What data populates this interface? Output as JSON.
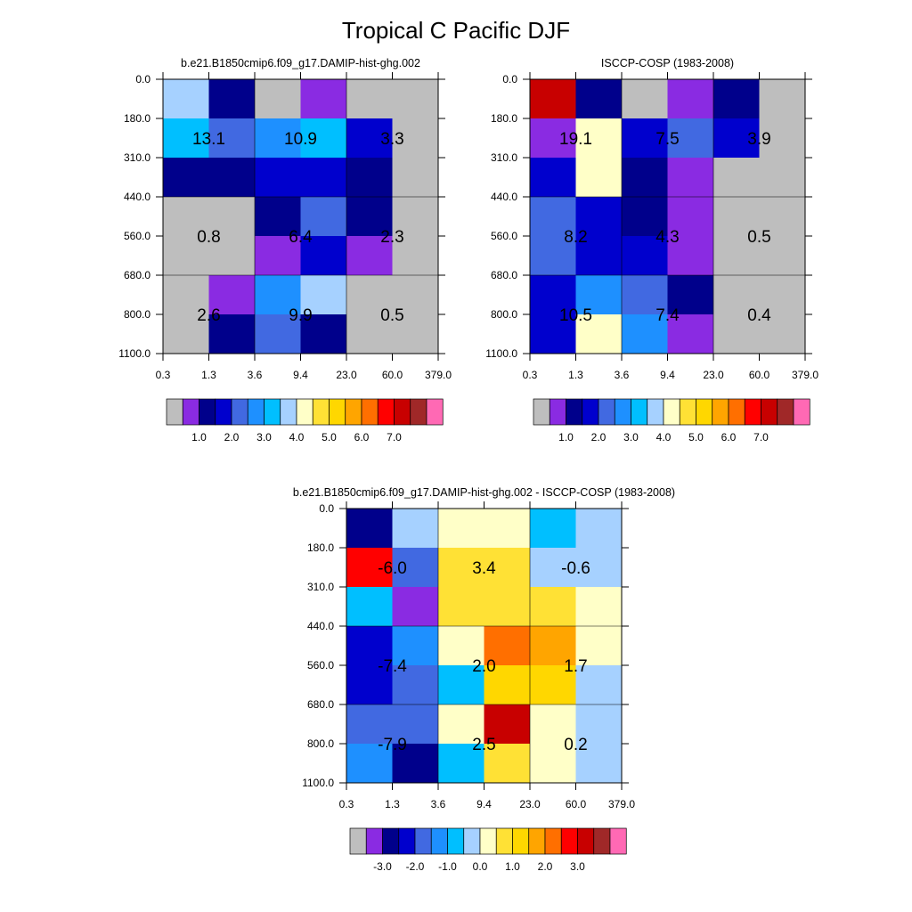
{
  "chart_data": {
    "title": "Tropical C Pacific DJF",
    "type": "heatmap",
    "y_ticks": [
      "0.0",
      "180.0",
      "310.0",
      "440.0",
      "560.0",
      "680.0",
      "800.0",
      "1100.0"
    ],
    "x_ticks": [
      "0.3",
      "1.3",
      "3.6",
      "9.4",
      "23.0",
      "60.0",
      "379.0"
    ],
    "palette": [
      "#bebebe",
      "#8a2be2",
      "#00008b",
      "#0000cd",
      "#4169e1",
      "#1e90ff",
      "#00bfff",
      "#a6d1ff",
      "#ffffc8",
      "#ffe135",
      "#ffd700",
      "#ffa500",
      "#ff6f00",
      "#ff0000",
      "#c80000",
      "#a02828",
      "#ff69b4"
    ],
    "panels": [
      {
        "title": "b.e21.B1850cmip6.f09_g17.DAMIP-hist-ghg.002",
        "colorbar_labels": [
          "1.0",
          "2.0",
          "3.0",
          "4.0",
          "5.0",
          "6.0",
          "7.0"
        ],
        "colorbar_label_start": 2,
        "cells": [
          [
            7,
            2,
            0,
            1,
            0,
            0
          ],
          [
            6,
            4,
            5,
            6,
            3,
            0
          ],
          [
            2,
            2,
            3,
            3,
            2,
            0
          ],
          [
            0,
            0,
            2,
            4,
            2,
            0
          ],
          [
            0,
            0,
            1,
            3,
            1,
            0
          ],
          [
            0,
            1,
            5,
            7,
            0,
            0
          ],
          [
            0,
            2,
            4,
            2,
            0,
            0
          ]
        ],
        "group_labels": [
          [
            "13.1",
            "10.9",
            "3.3"
          ],
          [
            "0.8",
            "6.4",
            "2.3"
          ],
          [
            "2.6",
            "9.9",
            "0.5"
          ]
        ]
      },
      {
        "title": "ISCCP-COSP (1983-2008)",
        "colorbar_labels": [
          "1.0",
          "2.0",
          "3.0",
          "4.0",
          "5.0",
          "6.0",
          "7.0"
        ],
        "colorbar_label_start": 2,
        "cells": [
          [
            14,
            2,
            0,
            1,
            2,
            0
          ],
          [
            1,
            8,
            3,
            4,
            3,
            0
          ],
          [
            3,
            8,
            2,
            1,
            0,
            0
          ],
          [
            4,
            3,
            2,
            1,
            0,
            0
          ],
          [
            4,
            3,
            3,
            1,
            0,
            0
          ],
          [
            3,
            5,
            4,
            2,
            0,
            0
          ],
          [
            3,
            8,
            5,
            1,
            0,
            0
          ]
        ],
        "group_labels": [
          [
            "19.1",
            "7.5",
            "3.9"
          ],
          [
            "8.2",
            "4.3",
            "0.5"
          ],
          [
            "10.5",
            "7.4",
            "0.4"
          ]
        ]
      },
      {
        "title": "b.e21.B1850cmip6.f09_g17.DAMIP-hist-ghg.002 - ISCCP-COSP (1983-2008)",
        "colorbar_labels": [
          "-3.0",
          "-2.0",
          "-1.0",
          "0.0",
          "1.0",
          "2.0",
          "3.0"
        ],
        "colorbar_label_start": 2,
        "cells": [
          [
            2,
            7,
            8,
            8,
            6,
            7
          ],
          [
            13,
            4,
            9,
            9,
            7,
            7
          ],
          [
            6,
            1,
            9,
            9,
            9,
            8
          ],
          [
            3,
            5,
            8,
            12,
            11,
            8
          ],
          [
            3,
            4,
            6,
            10,
            10,
            7
          ],
          [
            4,
            4,
            8,
            14,
            8,
            7
          ],
          [
            5,
            2,
            6,
            9,
            8,
            7
          ]
        ],
        "group_labels": [
          [
            "-6.0",
            "3.4",
            "-0.6"
          ],
          [
            "-7.4",
            "2.0",
            "1.7"
          ],
          [
            "-7.9",
            "2.5",
            "0.2"
          ]
        ]
      }
    ]
  }
}
